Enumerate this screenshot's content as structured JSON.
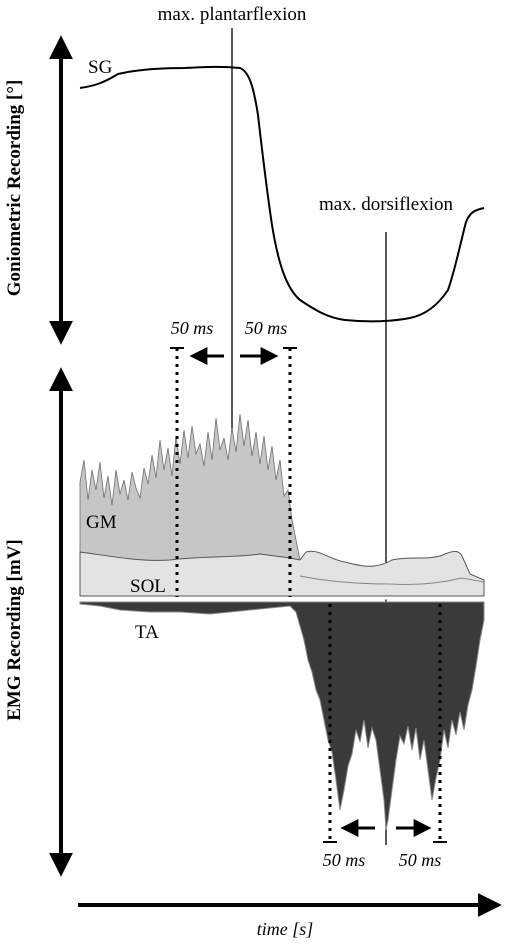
{
  "annotations": {
    "max_plantarflexion": "max. plantarflexion",
    "max_dorsiflexion": "max. dorsiflexion"
  },
  "axes": {
    "goniometric": "Goniometric Recording [°]",
    "emg": "EMG Recording [mV]",
    "time": "time [s]"
  },
  "signals": {
    "sg": "SG",
    "gm": "GM",
    "sol": "SOL",
    "ta": "TA"
  },
  "windows": {
    "upper_left": "50 ms",
    "upper_right": "50 ms",
    "lower_left": "50 ms",
    "lower_right": "50 ms"
  },
  "colors": {
    "gm_fill": "#c8c8c8",
    "sol_fill": "#e4e4e4",
    "ta_fill": "#3a3a3a",
    "line": "#000000"
  }
}
